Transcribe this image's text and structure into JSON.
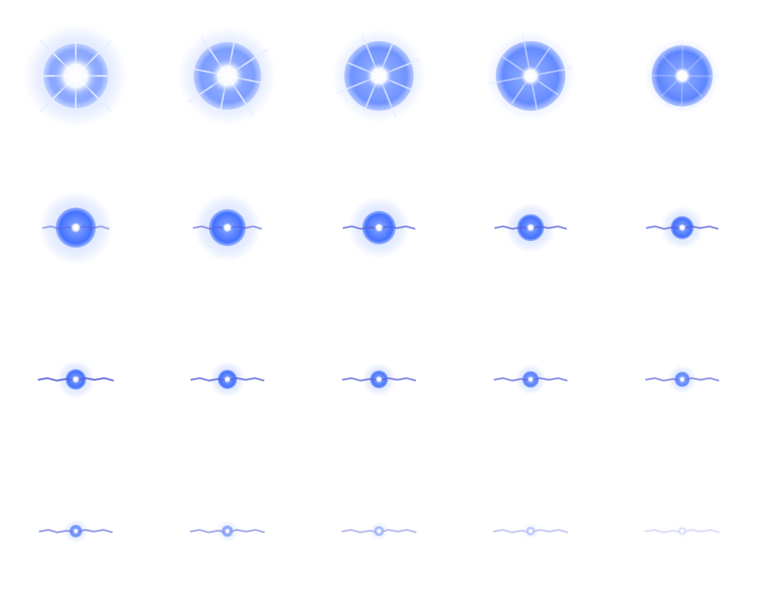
{
  "sprite_sheet": {
    "grid": {
      "columns": 5,
      "rows": 4
    },
    "frame_count": 20,
    "palette": {
      "core": "#ffffff",
      "bright": "#3b6bff",
      "mid": "#6f93ff",
      "glow": "#c9d8ff",
      "rays": "#e6eeff",
      "bolt": "#5a62d8"
    },
    "frames": [
      {
        "phase": "burst",
        "size": 1.0,
        "core": 1.0,
        "rays": 1.0,
        "bolt": 0.0,
        "opacity": 1.0
      },
      {
        "phase": "burst",
        "size": 0.95,
        "core": 0.8,
        "rays": 0.9,
        "bolt": 0.0,
        "opacity": 1.0
      },
      {
        "phase": "burst",
        "size": 0.9,
        "core": 0.6,
        "rays": 0.8,
        "bolt": 0.0,
        "opacity": 1.0
      },
      {
        "phase": "burst",
        "size": 0.85,
        "core": 0.45,
        "rays": 0.6,
        "bolt": 0.0,
        "opacity": 1.0
      },
      {
        "phase": "burst",
        "size": 0.72,
        "core": 0.35,
        "rays": 0.3,
        "bolt": 0.0,
        "opacity": 1.0
      },
      {
        "phase": "orb",
        "size": 0.62,
        "core": 0.3,
        "rays": 0.0,
        "bolt": 0.6,
        "opacity": 1.0
      },
      {
        "phase": "orb",
        "size": 0.57,
        "core": 0.28,
        "rays": 0.0,
        "bolt": 0.7,
        "opacity": 1.0
      },
      {
        "phase": "orb",
        "size": 0.52,
        "core": 0.26,
        "rays": 0.0,
        "bolt": 0.85,
        "opacity": 1.0
      },
      {
        "phase": "orb",
        "size": 0.42,
        "core": 0.24,
        "rays": 0.0,
        "bolt": 0.85,
        "opacity": 1.0
      },
      {
        "phase": "orb",
        "size": 0.36,
        "core": 0.22,
        "rays": 0.0,
        "bolt": 0.85,
        "opacity": 1.0
      },
      {
        "phase": "spark",
        "size": 0.32,
        "core": 0.22,
        "rays": 0.0,
        "bolt": 1.0,
        "opacity": 1.0
      },
      {
        "phase": "spark",
        "size": 0.3,
        "core": 0.2,
        "rays": 0.0,
        "bolt": 0.9,
        "opacity": 1.0
      },
      {
        "phase": "spark",
        "size": 0.28,
        "core": 0.2,
        "rays": 0.0,
        "bolt": 0.9,
        "opacity": 0.95
      },
      {
        "phase": "spark",
        "size": 0.26,
        "core": 0.18,
        "rays": 0.0,
        "bolt": 0.9,
        "opacity": 0.9
      },
      {
        "phase": "spark",
        "size": 0.24,
        "core": 0.18,
        "rays": 0.0,
        "bolt": 0.9,
        "opacity": 0.85
      },
      {
        "phase": "fade",
        "size": 0.2,
        "core": 0.16,
        "rays": 0.0,
        "bolt": 0.9,
        "opacity": 0.8
      },
      {
        "phase": "fade",
        "size": 0.18,
        "core": 0.14,
        "rays": 0.0,
        "bolt": 0.95,
        "opacity": 0.65
      },
      {
        "phase": "fade",
        "size": 0.16,
        "core": 0.12,
        "rays": 0.0,
        "bolt": 0.95,
        "opacity": 0.5
      },
      {
        "phase": "fade",
        "size": 0.14,
        "core": 0.1,
        "rays": 0.0,
        "bolt": 0.95,
        "opacity": 0.4
      },
      {
        "phase": "fade",
        "size": 0.12,
        "core": 0.08,
        "rays": 0.0,
        "bolt": 0.95,
        "opacity": 0.25
      }
    ]
  }
}
